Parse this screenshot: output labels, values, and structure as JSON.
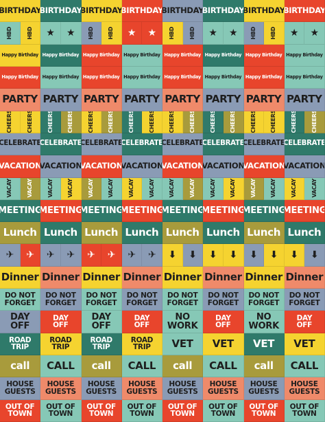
{
  "rows": [
    {
      "texts": [
        "BIRTHDAY",
        "BIRTHDAY",
        "BIRTHDAY",
        "BIRTHDAY",
        "BIRTHDAY",
        "BIRTHDAY",
        "BIRTHDAY",
        "BIRTHDAY"
      ],
      "bg": [
        "#f5d330",
        "#2f7a6a",
        "#f5d330",
        "#e8452c",
        "#8a9bb5",
        "#2f7a6a",
        "#f5d330",
        "#e8452c"
      ]
    },
    {
      "texts": [
        "HBD",
        "HBD",
        "★",
        "★",
        "HBD",
        "HBD",
        "★",
        "★",
        "HBD",
        "HBD",
        "★",
        "★",
        "HBD",
        "HBD",
        "★",
        "★"
      ],
      "bg": [
        "#86c8b6",
        "#f5d330",
        "#86c8b6",
        "#86c8b6",
        "#8a9bb5",
        "#f5d330",
        "#e8452c",
        "#e8452c",
        "#f5d330",
        "#8a9bb5",
        "#86c8b6",
        "#86c8b6",
        "#8a9bb5",
        "#f5d330",
        "#86c8b6",
        "#86c8b6"
      ],
      "vertical": true
    },
    {
      "texts": [
        "Happy Birthday",
        "Happy Birthday",
        "Happy Birthday",
        "Happy Birthday",
        "Happy Birthday",
        "Happy Birthday",
        "Happy Birthday",
        "Happy Birthday"
      ],
      "bg": [
        "#f5d330",
        "#2f7a6a",
        "#e8452c",
        "#86c8b6",
        "#e8452c",
        "#2f7a6a",
        "#e8452c",
        "#86c8b6"
      ]
    },
    {
      "texts": [
        "Happy Birthday",
        "Happy Birthday",
        "Happy Birthday",
        "Happy Birthday",
        "Happy Birthday",
        "Happy Birthday",
        "Happy Birthday",
        "Happy Birthday"
      ],
      "bg": [
        "#e8452c",
        "#86c8b6",
        "#e8452c",
        "#86c8b6",
        "#e8452c",
        "#86c8b6",
        "#e8452c",
        "#86c8b6"
      ]
    },
    {
      "texts": [
        "PARTY",
        "PARTY",
        "PARTY",
        "PARTY",
        "PARTY",
        "PARTY",
        "PARTY",
        "PARTY"
      ],
      "bg": [
        "#ef8a6a",
        "#8a9bb5",
        "#ef8a6a",
        "#8a9bb5",
        "#ef8a6a",
        "#8a9bb5",
        "#ef8a6a",
        "#8a9bb5"
      ]
    },
    {
      "texts": [
        "CHEERS",
        "CHEERS",
        "CHEERS",
        "CHEERS",
        "CHEERS",
        "CHEERS",
        "CHEERS",
        "CHEERS",
        "CHEERS",
        "CHEERS",
        "CHEERS",
        "CHEERS",
        "CHEERS",
        "CHEERS",
        "CHEERS",
        "CHEERS"
      ],
      "bg": [
        "#f5d330",
        "#f5d330",
        "#2f7a6a",
        "#a89b3c",
        "#f5d330",
        "#a89b3c",
        "#2f7a6a",
        "#f5d330",
        "#f5d330",
        "#a89b3c",
        "#2f7a6a",
        "#a89b3c",
        "#f5d330",
        "#f5d330",
        "#2f7a6a",
        "#a89b3c"
      ],
      "vertical": true
    },
    {
      "texts": [
        "CELEBRATE",
        "CELEBRATE",
        "CELEBRATE",
        "CELEBRATE",
        "CELEBRATE",
        "CELEBRATE",
        "CELEBRATE",
        "CELEBRATE"
      ],
      "bg": [
        "#8a9bb5",
        "#2f7a6a",
        "#8a9bb5",
        "#2f7a6a",
        "#8a9bb5",
        "#2f7a6a",
        "#8a9bb5",
        "#2f7a6a"
      ]
    },
    {
      "texts": [
        "VACATION",
        "VACATION",
        "VACATION",
        "VACATION",
        "VACATION",
        "VACATION",
        "VACATION",
        "VACATION"
      ],
      "bg": [
        "#e8452c",
        "#8a9bb5",
        "#e8452c",
        "#8a9bb5",
        "#e8452c",
        "#8a9bb5",
        "#e8452c",
        "#8a9bb5"
      ]
    },
    {
      "texts": [
        "VACAY",
        "VACAY",
        "VACAY",
        "VACAY",
        "VACAY",
        "VACAY",
        "VACAY",
        "VACAY",
        "VACAY",
        "VACAY",
        "VACAY",
        "VACAY",
        "VACAY",
        "VACAY",
        "VACAY",
        "VACAY"
      ],
      "bg": [
        "#86c8b6",
        "#a89b3c",
        "#86c8b6",
        "#f5d330",
        "#a89b3c",
        "#86c8b6",
        "#f5d330",
        "#86c8b6",
        "#86c8b6",
        "#a89b3c",
        "#86c8b6",
        "#f5d330",
        "#a89b3c",
        "#86c8b6",
        "#f5d330",
        "#86c8b6"
      ],
      "vertical": true
    },
    {
      "texts": [
        "MEETING",
        "MEETING",
        "MEETING",
        "MEETING",
        "MEETING",
        "MEETING",
        "MEETING",
        "MEETING"
      ],
      "bg": [
        "#2f7a6a",
        "#e8452c",
        "#2f7a6a",
        "#e8452c",
        "#2f7a6a",
        "#e8452c",
        "#2f7a6a",
        "#e8452c"
      ]
    },
    {
      "texts": [
        "Lunch",
        "Lunch",
        "Lunch",
        "Lunch",
        "Lunch",
        "Lunch",
        "Lunch",
        "Lunch"
      ],
      "bg": [
        "#a89b3c",
        "#2f7a6a",
        "#a89b3c",
        "#2f7a6a",
        "#a89b3c",
        "#2f7a6a",
        "#a89b3c",
        "#2f7a6a"
      ]
    },
    {
      "texts": [
        "✈",
        "✈",
        "✈",
        "✈",
        "✈",
        "✈",
        "✈",
        "✈",
        "⬇",
        "⬇",
        "⬇",
        "⬇",
        "⬇",
        "⬇",
        "⬇",
        "⬇"
      ],
      "bg": [
        "#8a9bb5",
        "#e8452c",
        "#8a9bb5",
        "#8a9bb5",
        "#e8452c",
        "#e8452c",
        "#8a9bb5",
        "#8a9bb5",
        "#f5d330",
        "#8a9bb5",
        "#f5d330",
        "#f5d330",
        "#8a9bb5",
        "#f5d330",
        "#f5d330",
        "#8a9bb5"
      ]
    },
    {
      "texts": [
        "Dinner",
        "Dinner",
        "Dinner",
        "Dinner",
        "Dinner",
        "Dinner",
        "Dinner",
        "Dinner"
      ],
      "bg": [
        "#f5d330",
        "#ef8a6a",
        "#f5d330",
        "#ef8a6a",
        "#f5d330",
        "#ef8a6a",
        "#f5d330",
        "#ef8a6a"
      ]
    },
    {
      "texts": [
        "DO NOT\nFORGET",
        "DO NOT\nFORGET",
        "DO NOT\nFORGET",
        "DO NOT\nFORGET",
        "DO NOT\nFORGET",
        "DO NOT\nFORGET",
        "DO NOT\nFORGET",
        "DO NOT\nFORGET"
      ],
      "bg": [
        "#86c8b6",
        "#8a9bb5",
        "#86c8b6",
        "#8a9bb5",
        "#86c8b6",
        "#8a9bb5",
        "#86c8b6",
        "#8a9bb5"
      ]
    },
    {
      "texts": [
        "DAY OFF",
        "DAY\nOFF",
        "DAY OFF",
        "DAY\nOFF",
        "NO WORK",
        "DAY\nOFF",
        "NO WORK",
        "DAY\nOFF"
      ],
      "bg": [
        "#8a9bb5",
        "#e8452c",
        "#86c8b6",
        "#e8452c",
        "#86c8b6",
        "#e8452c",
        "#86c8b6",
        "#e8452c"
      ]
    },
    {
      "texts": [
        "ROAD\nTRIP",
        "ROAD\nTRIP",
        "ROAD\nTRIP",
        "ROAD\nTRIP",
        "VET",
        "VET",
        "VET",
        "VET"
      ],
      "bg": [
        "#2f7a6a",
        "#f5d330",
        "#2f7a6a",
        "#f5d330",
        "#86c8b6",
        "#f5d330",
        "#2f7a6a",
        "#f5d330"
      ]
    },
    {
      "texts": [
        "call",
        "CALL",
        "call",
        "CALL",
        "call",
        "CALL",
        "call",
        "CALL"
      ],
      "bg": [
        "#a89b3c",
        "#86c8b6",
        "#a89b3c",
        "#86c8b6",
        "#a89b3c",
        "#86c8b6",
        "#a89b3c",
        "#86c8b6"
      ]
    },
    {
      "texts": [
        "HOUSE\nGUESTS",
        "HOUSE\nGUESTS",
        "HOUSE\nGUESTS",
        "HOUSE\nGUESTS",
        "HOUSE\nGUESTS",
        "HOUSE\nGUESTS",
        "HOUSE\nGUESTS",
        "HOUSE\nGUESTS"
      ],
      "bg": [
        "#8a9bb5",
        "#ef8a6a",
        "#8a9bb5",
        "#ef8a6a",
        "#8a9bb5",
        "#ef8a6a",
        "#8a9bb5",
        "#ef8a6a"
      ]
    },
    {
      "texts": [
        "OUT OF\nTOWN",
        "OUT OF\nTOWN",
        "OUT OF\nTOWN",
        "OUT OF\nTOWN",
        "OUT OF\nTOWN",
        "OUT OF\nTOWN",
        "OUT OF\nTOWN",
        "OUT OF\nTOWN"
      ],
      "bg": [
        "#e8452c",
        "#86c8b6",
        "#e8452c",
        "#86c8b6",
        "#e8452c",
        "#86c8b6",
        "#e8452c",
        "#86c8b6"
      ]
    }
  ]
}
